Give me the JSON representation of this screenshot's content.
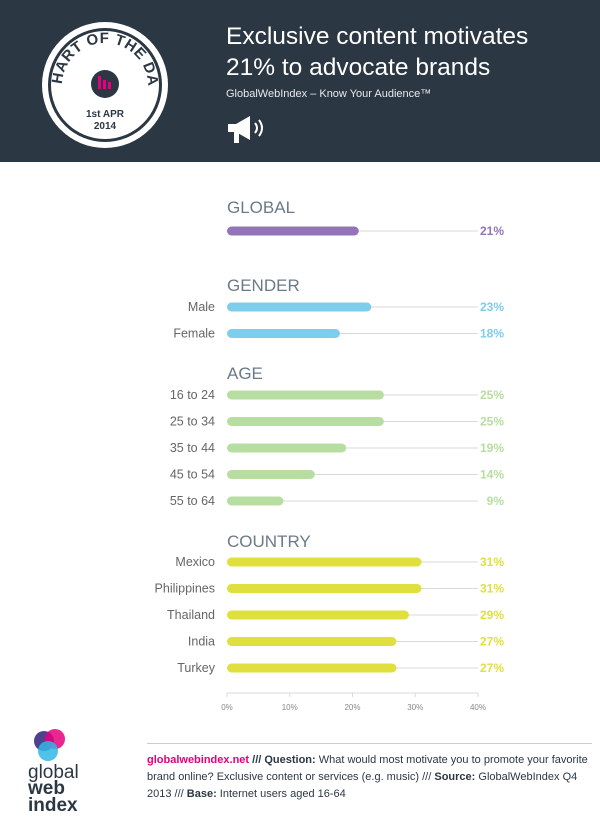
{
  "header": {
    "title_line1": "Exclusive content motivates",
    "title_line2": "21% to advocate brands",
    "subtitle": "GlobalWebIndex – Know Your Audience™",
    "badge": {
      "line1": "CHART OF THE DAY",
      "date_line1": "1st APR",
      "date_line2": "2014"
    }
  },
  "chart_data": {
    "type": "bar",
    "orientation": "horizontal",
    "value_suffix": "%",
    "xlim": [
      0,
      40
    ],
    "xticks": [
      "0%",
      "10%",
      "20%",
      "30%",
      "40%"
    ],
    "sections": [
      {
        "title": "GLOBAL",
        "color": "#9474b8",
        "rows": [
          {
            "label": "",
            "value": 21,
            "display": "21%"
          }
        ]
      },
      {
        "title": "GENDER",
        "color": "#7ecdec",
        "rows": [
          {
            "label": "Male",
            "value": 23,
            "display": "23%"
          },
          {
            "label": "Female",
            "value": 18,
            "display": "18%"
          }
        ]
      },
      {
        "title": "AGE",
        "color": "#b7dea0",
        "rows": [
          {
            "label": "16 to 24",
            "value": 25,
            "display": "25%"
          },
          {
            "label": "25 to 34",
            "value": 25,
            "display": "25%"
          },
          {
            "label": "35 to 44",
            "value": 19,
            "display": "19%"
          },
          {
            "label": "45 to 54",
            "value": 14,
            "display": "14%"
          },
          {
            "label": "55 to 64",
            "value": 9,
            "display": "9%"
          }
        ]
      },
      {
        "title": "COUNTRY",
        "color": "#dfe03e",
        "rows": [
          {
            "label": "Mexico",
            "value": 31,
            "display": "31%"
          },
          {
            "label": "Philippines",
            "value": 31,
            "display": "31%"
          },
          {
            "label": "Thailand",
            "value": 29,
            "display": "29%"
          },
          {
            "label": "India",
            "value": 27,
            "display": "27%"
          },
          {
            "label": "Turkey",
            "value": 27,
            "display": "27%"
          }
        ]
      }
    ]
  },
  "footer": {
    "logo_text": [
      "global",
      "web",
      "index"
    ],
    "site": "globalwebindex.net",
    "sep1": " /// ",
    "question_label": "Question:",
    "question_text": " What would most motivate you to promote your favorite brand online? Exclusive content or services (e.g. music) /// ",
    "source_label": "Source:",
    "source_text": " GlobalWebIndex Q4 2013 /// ",
    "base_label": "Base:",
    "base_text": " Internet users aged 16-64"
  },
  "colors": {
    "header_bg": "#2c3744",
    "grid_line": "#d9d9d9",
    "section_title": "#6b7a88",
    "label": "#666666",
    "accent": "#e6007e"
  }
}
